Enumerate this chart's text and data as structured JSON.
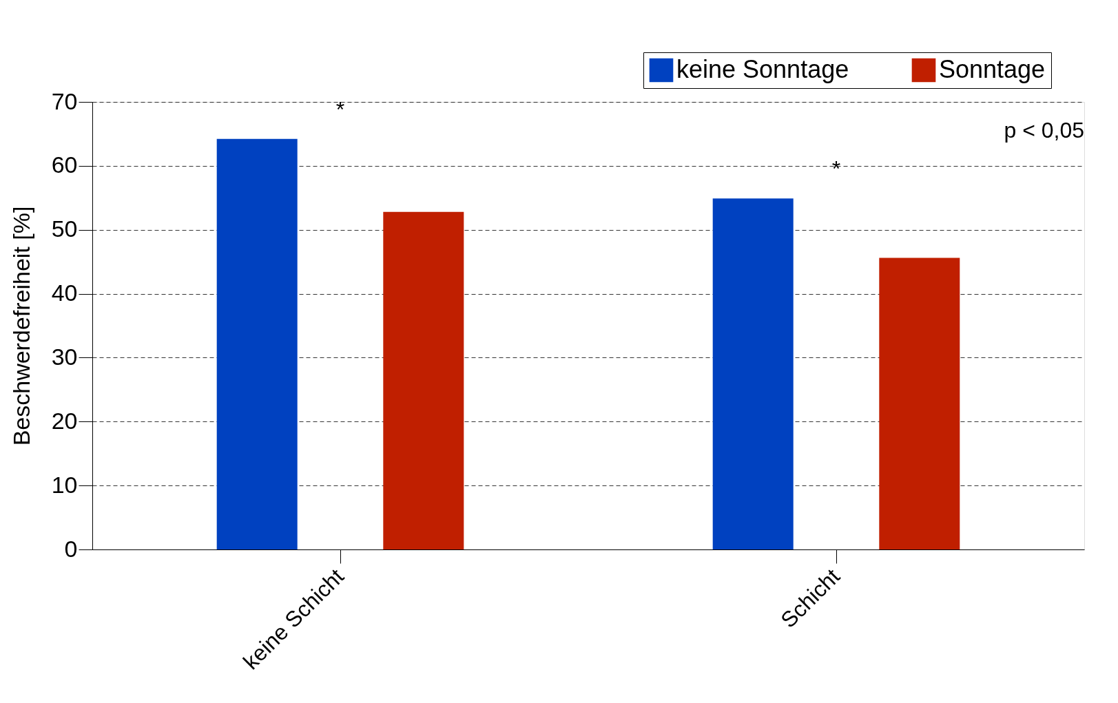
{
  "chart_data": {
    "type": "bar",
    "categories": [
      "keine Schicht",
      "Schicht"
    ],
    "series": [
      {
        "name": "keine Sonntage",
        "color": "#0041c0",
        "values": [
          64.2,
          54.9
        ]
      },
      {
        "name": "Sonntage",
        "color": "#c01f00",
        "values": [
          52.8,
          45.6
        ]
      }
    ],
    "ylabel": "Beschwerdefreiheit [%]",
    "ylim": [
      0,
      70
    ],
    "yticks": [
      0,
      10,
      20,
      30,
      40,
      50,
      60,
      70
    ],
    "grid": "y",
    "legend": "top right",
    "annotations": [
      "*",
      "*",
      "p < 0,05"
    ]
  }
}
